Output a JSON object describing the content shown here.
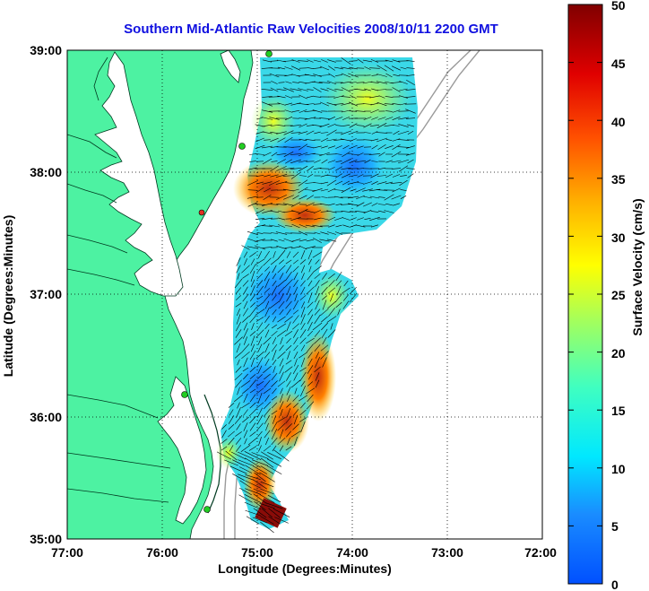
{
  "title": "Southern Mid-Atlantic Raw Velocities 2008/10/11 2200 GMT",
  "axes": {
    "xlabel": "Longitude (Degrees:Minutes)",
    "ylabel": "Latitude (Degrees:Minutes)",
    "x_ticks": [
      "77:00",
      "76:00",
      "75:00",
      "74:00",
      "73:00",
      "72:00"
    ],
    "y_ticks": [
      "39:00",
      "38:00",
      "37:00",
      "36:00",
      "35:00"
    ]
  },
  "colorbar": {
    "label": "Surface Velocity (cm/s)",
    "ticks": [
      "50",
      "45",
      "40",
      "35",
      "30",
      "25",
      "20",
      "15",
      "10",
      "5",
      "0"
    ],
    "min": 0,
    "max": 50
  },
  "colors": {
    "land": "#4df2a2",
    "title": "#1010e0",
    "station": "#22cc22",
    "station_alert": "#e03020",
    "vector": "#000000"
  }
}
